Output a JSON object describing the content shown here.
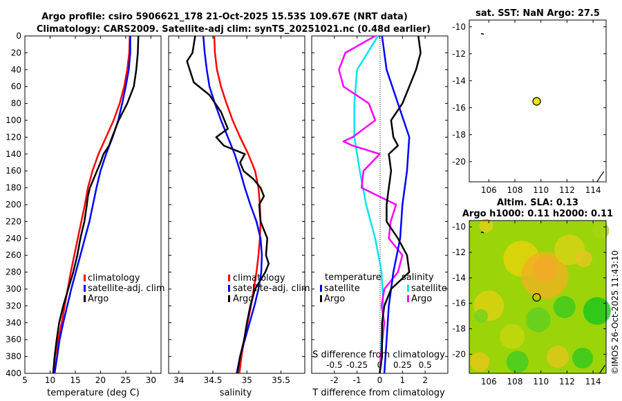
{
  "header": {
    "title_line1": "Argo profile: csiro 5906621_178 21-Oct-2025 15.53S 109.67E (NRT data)",
    "title_line2": "Climatology: CARS2009. Satellite-adj clim: synTS_20251021.nc (0.48d earlier)"
  },
  "watermark": "©IMOS 26-Oct-2025 11:43:10",
  "colors": {
    "climatology": "#ff0000",
    "satellite": "#0000ff",
    "argo": "#000000",
    "sal_satellite": "#00e5ee",
    "sal_argo": "#ff00ff"
  },
  "chart_data": [
    {
      "type": "line",
      "name": "temperature-profile",
      "xlabel": "temperature (deg C)",
      "ylabel": "",
      "xlim": [
        5,
        32
      ],
      "ylim": [
        400,
        0
      ],
      "xticks": [
        "5",
        "10",
        "15",
        "20",
        "25",
        "30"
      ],
      "yticks": [
        "0",
        "20",
        "40",
        "60",
        "80",
        "100",
        "120",
        "140",
        "160",
        "180",
        "200",
        "220",
        "240",
        "260",
        "280",
        "300",
        "320",
        "340",
        "360",
        "380",
        "400"
      ],
      "legend": [
        "climatology",
        "satellite-adj. clim",
        "Argo"
      ],
      "series": [
        {
          "name": "climatology",
          "depth": [
            0,
            20,
            40,
            60,
            80,
            100,
            120,
            140,
            160,
            180,
            200,
            220,
            240,
            260,
            280,
            300,
            320,
            340,
            360,
            380,
            400
          ],
          "values": [
            25.8,
            25.7,
            25.3,
            24.7,
            23.8,
            22.6,
            21.1,
            19.6,
            18.4,
            17.5,
            16.9,
            16.2,
            15.5,
            14.8,
            14.1,
            13.5,
            12.9,
            12.3,
            11.6,
            11.0,
            10.6
          ]
        },
        {
          "name": "satellite-adj. clim",
          "depth": [
            0,
            20,
            40,
            60,
            80,
            100,
            120,
            140,
            160,
            180,
            200,
            220,
            240,
            260,
            280,
            300,
            320,
            340,
            360,
            380,
            400
          ],
          "values": [
            25.9,
            25.9,
            25.6,
            25.0,
            24.3,
            23.5,
            22.4,
            21.1,
            20.0,
            19.2,
            18.5,
            17.8,
            16.9,
            16.0,
            15.1,
            14.2,
            13.4,
            12.6,
            11.9,
            11.4,
            10.9
          ]
        },
        {
          "name": "Argo",
          "depth": [
            0,
            20,
            40,
            60,
            80,
            100,
            120,
            130,
            140,
            150,
            160,
            170,
            180,
            190,
            200,
            220,
            240,
            260,
            280,
            300,
            320,
            340,
            360,
            380,
            400
          ],
          "values": [
            27.5,
            27.4,
            27.1,
            26.6,
            25.3,
            23.6,
            22.3,
            21.7,
            20.6,
            20.0,
            19.3,
            18.6,
            17.9,
            17.5,
            17.3,
            16.8,
            16.0,
            15.4,
            14.6,
            13.6,
            12.6,
            11.8,
            11.3,
            10.9,
            10.6
          ]
        }
      ]
    },
    {
      "type": "line",
      "name": "salinity-profile",
      "xlabel": "salinity",
      "xlim": [
        33.85,
        35.85
      ],
      "ylim": [
        400,
        0
      ],
      "xticks": [
        "34",
        "34.5",
        "35",
        "35.5"
      ],
      "legend": [
        "climatology",
        "satellite-adj. clim",
        "Argo"
      ],
      "series": [
        {
          "name": "climatology",
          "depth": [
            0,
            20,
            40,
            60,
            80,
            100,
            120,
            140,
            160,
            180,
            200,
            220,
            240,
            260,
            280,
            300,
            320,
            340,
            360,
            380,
            400
          ],
          "values": [
            34.52,
            34.53,
            34.56,
            34.62,
            34.7,
            34.79,
            34.9,
            35.02,
            35.12,
            35.17,
            35.19,
            35.2,
            35.19,
            35.17,
            35.14,
            35.1,
            35.06,
            35.01,
            34.96,
            34.92,
            34.89
          ]
        },
        {
          "name": "satellite-adj. clim",
          "depth": [
            0,
            20,
            40,
            60,
            80,
            100,
            120,
            140,
            160,
            180,
            200,
            220,
            240,
            260,
            280,
            300,
            320,
            340,
            360,
            380,
            400
          ],
          "values": [
            34.36,
            34.38,
            34.41,
            34.45,
            34.53,
            34.62,
            34.72,
            34.82,
            34.9,
            34.97,
            35.05,
            35.14,
            35.2,
            35.22,
            35.21,
            35.17,
            35.11,
            35.04,
            34.97,
            34.9,
            34.85
          ]
        },
        {
          "name": "Argo",
          "depth": [
            0,
            20,
            30,
            40,
            55,
            70,
            90,
            110,
            120,
            130,
            140,
            150,
            160,
            170,
            180,
            190,
            200,
            220,
            240,
            260,
            270,
            280,
            300,
            320,
            340,
            360,
            380,
            400
          ],
          "values": [
            34.24,
            34.2,
            34.12,
            34.16,
            34.22,
            34.45,
            34.62,
            34.72,
            34.55,
            34.66,
            34.97,
            34.9,
            34.95,
            35.1,
            35.2,
            35.25,
            35.18,
            35.2,
            35.3,
            35.28,
            35.32,
            35.27,
            35.12,
            35.05,
            35.0,
            34.96,
            34.9,
            34.86
          ]
        }
      ]
    },
    {
      "type": "line",
      "name": "difference-profile",
      "xlabel": "T difference from climatology",
      "xlabel_top": "S difference from climatology",
      "xlim": [
        -3,
        3
      ],
      "ylim": [
        400,
        0
      ],
      "xticks": [
        "-2",
        "-1",
        "0",
        "1",
        "2"
      ],
      "sticks": [
        "-0.5",
        "-0.25",
        "0",
        "0.25",
        "0.5"
      ],
      "legend_title_left": "temperature",
      "legend_title_right": "salinity",
      "legend_left": [
        "satellite",
        "Argo"
      ],
      "legend_right": [
        "satellite",
        "Argo"
      ],
      "series": [
        {
          "name": "T satellite",
          "depth": [
            0,
            40,
            80,
            120,
            160,
            200,
            240,
            280,
            320,
            360,
            400
          ],
          "values": [
            0.1,
            0.3,
            0.8,
            1.3,
            1.2,
            1.0,
            0.9,
            0.6,
            0.4,
            0.3,
            0.2
          ]
        },
        {
          "name": "T Argo",
          "depth": [
            0,
            20,
            40,
            60,
            80,
            100,
            120,
            130,
            140,
            160,
            180,
            200,
            220,
            240,
            260,
            280,
            300,
            320,
            340,
            360,
            380,
            400
          ],
          "values": [
            1.7,
            1.8,
            1.6,
            1.3,
            1.0,
            0.5,
            0.6,
            0.8,
            0.4,
            0.5,
            0.4,
            0.3,
            0.3,
            0.8,
            1.2,
            1.3,
            0.5,
            0.2,
            0.1,
            0.1,
            0.1,
            0.0
          ]
        },
        {
          "name": "S satellite",
          "depth": [
            0,
            40,
            80,
            120,
            160,
            200,
            240,
            280,
            320,
            360,
            400
          ],
          "values": [
            -0.02,
            -0.25,
            -0.28,
            -0.28,
            -0.22,
            -0.15,
            -0.05,
            0.02,
            0.04,
            0.02,
            0.0
          ]
        },
        {
          "name": "S Argo",
          "depth": [
            0,
            20,
            40,
            60,
            80,
            100,
            120,
            125,
            130,
            140,
            160,
            180,
            200,
            220,
            240,
            260,
            280,
            300,
            320,
            340,
            360,
            380,
            400
          ],
          "values": [
            -0.05,
            -0.38,
            -0.45,
            -0.4,
            -0.12,
            -0.05,
            -0.3,
            -0.4,
            -0.3,
            0.0,
            -0.18,
            -0.2,
            0.18,
            0.12,
            0.1,
            0.25,
            0.2,
            0.05,
            0.02,
            0.05,
            0.03,
            0.01,
            0.0
          ]
        }
      ]
    },
    {
      "type": "scatter",
      "name": "sst-map",
      "title": "sat. SST: NaN Argo: 27.5",
      "xlim": [
        104.5,
        115
      ],
      "ylim": [
        -21.5,
        -9.5
      ],
      "xticks": [
        "106",
        "108",
        "110",
        "112",
        "114"
      ],
      "yticks": [
        "-10",
        "-12",
        "-14",
        "-16",
        "-18",
        "-20"
      ],
      "points": [
        {
          "lon": 109.67,
          "lat": -15.53
        }
      ]
    },
    {
      "type": "heatmap",
      "name": "sla-map",
      "title_line1": "Altim. SLA: 0.13",
      "title_line2": "Argo h1000: 0.11 h2000: 0.11",
      "xlim": [
        104.5,
        115
      ],
      "ylim": [
        -21.5,
        -9.5
      ],
      "xticks": [
        "106",
        "108",
        "110",
        "112",
        "114"
      ],
      "yticks": [
        "-10",
        "-12",
        "-14",
        "-16",
        "-18",
        "-20"
      ],
      "points": [
        {
          "lon": 109.67,
          "lat": -15.53
        }
      ]
    }
  ]
}
